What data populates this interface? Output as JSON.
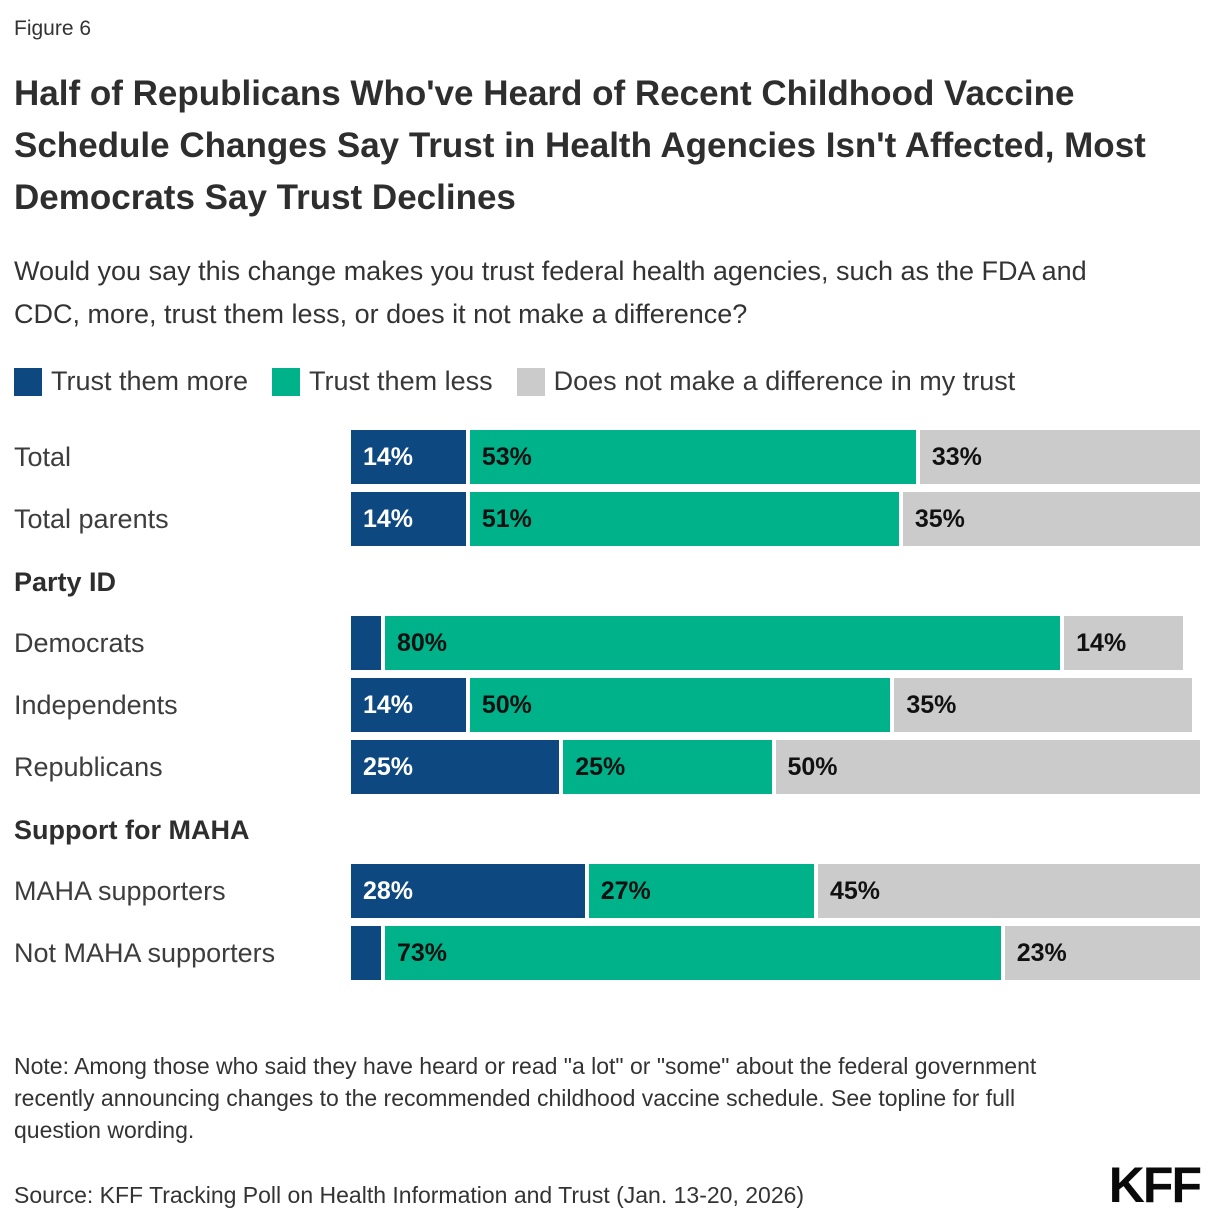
{
  "figure_label": "Figure 6",
  "title": "Half of Republicans Who've Heard of Recent Childhood Vaccine Schedule Changes Say Trust in Health Agencies Isn't Affected, Most Democrats Say Trust Declines",
  "subtitle": "Would you say this change makes you trust federal health agencies, such as the FDA and CDC, more, trust them less, or does it not make a difference?",
  "legend": [
    {
      "label": "Trust them more",
      "color": "#0e4880"
    },
    {
      "label": "Trust them less",
      "color": "#00b28a"
    },
    {
      "label": "Does not make a difference in my trust",
      "color": "#cbcbcb"
    }
  ],
  "chart_data": {
    "type": "bar",
    "orientation": "horizontal_stacked",
    "value_unit": "percent",
    "xlim": [
      0,
      100
    ],
    "series_names": [
      "Trust them more",
      "Trust them less",
      "Does not make a difference in my trust"
    ],
    "colors": [
      "#0e4880",
      "#00b28a",
      "#cbcbcb"
    ],
    "text_colors": [
      "#ffffff",
      "#111111",
      "#111111"
    ],
    "rows": [
      {
        "type": "bar",
        "label": "Total",
        "values": [
          14,
          53,
          33
        ],
        "value_labels": [
          "14%",
          "53%",
          "33%"
        ]
      },
      {
        "type": "bar",
        "label": "Total parents",
        "values": [
          14,
          51,
          35
        ],
        "value_labels": [
          "14%",
          "51%",
          "35%"
        ]
      },
      {
        "type": "header",
        "label": "Party ID"
      },
      {
        "type": "bar",
        "label": "Democrats",
        "values": [
          4,
          80,
          14
        ],
        "value_labels": [
          "",
          "80%",
          "14%"
        ]
      },
      {
        "type": "bar",
        "label": "Independents",
        "values": [
          14,
          50,
          35
        ],
        "value_labels": [
          "14%",
          "50%",
          "35%"
        ]
      },
      {
        "type": "bar",
        "label": "Republicans",
        "values": [
          25,
          25,
          50
        ],
        "value_labels": [
          "25%",
          "25%",
          "50%"
        ]
      },
      {
        "type": "header",
        "label": "Support for MAHA"
      },
      {
        "type": "bar",
        "label": "MAHA supporters",
        "values": [
          28,
          27,
          45
        ],
        "value_labels": [
          "28%",
          "27%",
          "45%"
        ]
      },
      {
        "type": "bar",
        "label": "Not MAHA supporters",
        "values": [
          4,
          73,
          23
        ],
        "value_labels": [
          "",
          "73%",
          "23%"
        ]
      }
    ]
  },
  "note": "Note: Among those who said they have heard or read \"a lot\" or \"some\" about the federal government recently announcing changes to the recommended childhood vaccine schedule. See topline for full question wording.",
  "source": "Source: KFF Tracking Poll on Health Information and Trust (Jan. 13-20, 2026)",
  "logo_text": "KFF"
}
